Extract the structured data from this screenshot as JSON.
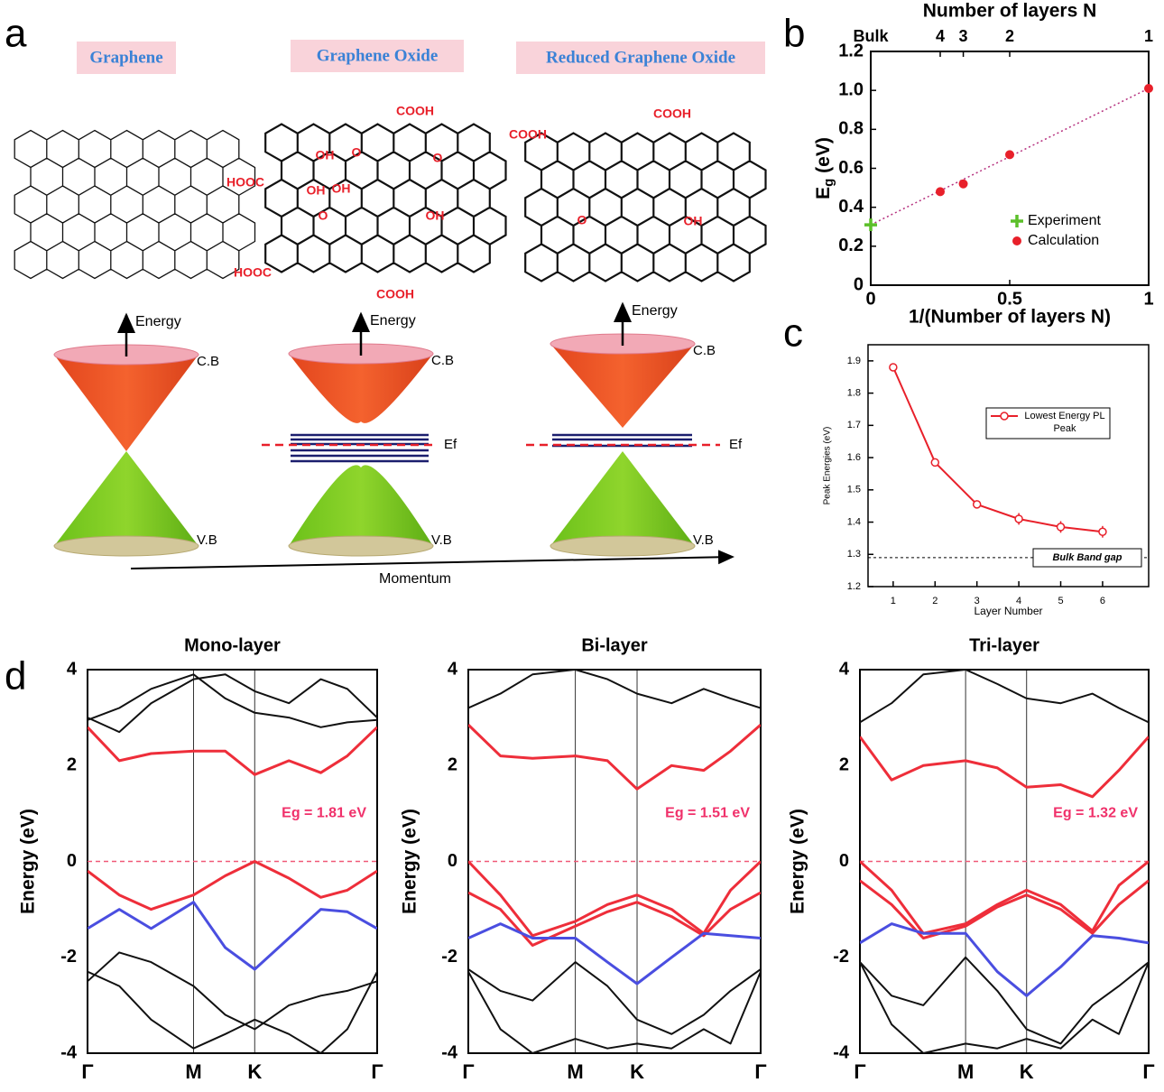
{
  "panel_labels": [
    "a",
    "b",
    "c",
    "d"
  ],
  "diagram": {
    "titles": [
      "Graphene",
      "Graphene Oxide",
      "Reduced Graphene Oxide"
    ],
    "groups": [
      "COOH",
      "COOH",
      "HOOC",
      "OH",
      "O",
      "O",
      "OH",
      "OH",
      "O",
      "OH",
      "HOOC",
      "COOH",
      "COOH",
      "O",
      "OH"
    ],
    "energy": "Energy",
    "cb": "C.B",
    "vb": "V.B",
    "ef": "Ef",
    "momentum": "Momentum"
  },
  "chart_data": [
    {
      "type": "scatter",
      "x2_label": "Number of layers N",
      "x_label": "1/(Number of layers N)",
      "y_label": [
        "E",
        "g",
        " (eV)"
      ],
      "xlim": [
        0,
        1
      ],
      "ylim": [
        0,
        1.2
      ],
      "xticks": [
        0,
        0.5,
        1
      ],
      "x2ticks": [
        {
          "value": 0,
          "label": "Bulk"
        },
        {
          "value": 0.25,
          "label": "4"
        },
        {
          "value": 0.333,
          "label": "3"
        },
        {
          "value": 0.5,
          "label": "2"
        },
        {
          "value": 1,
          "label": "1"
        }
      ],
      "yticks": [
        0,
        0.2,
        0.4,
        0.6,
        0.8,
        {
          "value": 1,
          "label": "1.0"
        },
        1.2
      ],
      "fit_color": "#b5307e",
      "series": [
        {
          "name": "Experiment",
          "color": "#5cbf2a",
          "marker": "plus",
          "x": [
            0
          ],
          "values": [
            0.31
          ]
        },
        {
          "name": "Calculation",
          "color": "#e8202a",
          "marker": "circle",
          "x": [
            0.25,
            0.333,
            0.5,
            1
          ],
          "values": [
            0.48,
            0.52,
            0.67,
            1.01
          ]
        }
      ]
    },
    {
      "type": "line",
      "x_label": "Layer Number",
      "y_label": "Peak Energies (eV)",
      "xlim": [
        0.4,
        7.1
      ],
      "ylim": [
        1.2,
        1.95
      ],
      "xticks": [
        1,
        2,
        3,
        4,
        5,
        6
      ],
      "yticks": [
        1.2,
        1.3,
        1.4,
        1.5,
        1.6,
        1.7,
        1.8,
        1.9
      ],
      "x": [
        1,
        2,
        3,
        4,
        5,
        6
      ],
      "series": [
        {
          "name": "Lowest Energy PL Peak",
          "color": "#e8202a",
          "values": [
            1.88,
            1.585,
            1.455,
            1.41,
            1.385,
            1.37
          ],
          "errors": [
            0.008,
            0.012,
            0.01,
            0.018,
            0.018,
            0.018
          ]
        }
      ],
      "reference": {
        "value": 1.29,
        "label": "Bulk Band gap"
      }
    },
    {
      "type": "line",
      "title": "Mono-layer",
      "y_label": "Energy (eV)",
      "annotation": "Eg = 1.81 eV",
      "xlim": [
        0,
        2.732
      ],
      "ylim": [
        -4,
        4
      ],
      "xticks": [
        {
          "value": 0,
          "label": "Γ"
        },
        {
          "value": 1,
          "label": "M"
        },
        {
          "value": 1.577,
          "label": "K"
        },
        {
          "value": 2.732,
          "label": "Γ"
        }
      ],
      "yticks": [
        -4,
        -2,
        0,
        2,
        4
      ],
      "fermi_level": 0,
      "x": [
        0,
        0.3,
        0.6,
        1,
        1.3,
        1.577,
        1.9,
        2.2,
        2.45,
        2.732
      ],
      "series": [
        {
          "color": "#ee2e3a",
          "values": [
            2.8,
            2.1,
            2.25,
            2.3,
            2.3,
            1.81,
            2.1,
            1.85,
            2.2,
            2.8
          ]
        },
        {
          "color": "#ee2e3a",
          "values": [
            -0.2,
            -0.7,
            -1.0,
            -0.7,
            -0.3,
            0,
            -0.35,
            -0.75,
            -0.6,
            -0.2
          ]
        },
        {
          "color": "#4a4ee0",
          "values": [
            -1.4,
            -1.0,
            -1.4,
            -0.85,
            -1.8,
            -2.25,
            -1.6,
            -1.0,
            -1.05,
            -1.4
          ]
        },
        {
          "color": "#111111",
          "values": [
            3.0,
            2.7,
            3.3,
            3.8,
            3.9,
            3.55,
            3.3,
            3.8,
            3.6,
            3.0
          ]
        },
        {
          "color": "#111111",
          "values": [
            2.95,
            3.2,
            3.6,
            3.9,
            3.4,
            3.1,
            3.0,
            2.8,
            2.9,
            2.95
          ]
        },
        {
          "color": "#111111",
          "values": [
            -2.5,
            -1.9,
            -2.1,
            -2.6,
            -3.2,
            -3.5,
            -3.0,
            -2.8,
            -2.7,
            -2.5
          ]
        },
        {
          "color": "#111111",
          "values": [
            -2.3,
            -2.6,
            -3.3,
            -3.9,
            -3.6,
            -3.3,
            -3.6,
            -4.0,
            -3.5,
            -2.3
          ]
        }
      ]
    },
    {
      "type": "line",
      "title": "Bi-layer",
      "y_label": "Energy (eV)",
      "annotation": "Eg = 1.51 eV",
      "xlim": [
        0,
        2.732
      ],
      "ylim": [
        -4,
        4
      ],
      "xticks": [
        {
          "value": 0,
          "label": "Γ"
        },
        {
          "value": 1,
          "label": "M"
        },
        {
          "value": 1.577,
          "label": "K"
        },
        {
          "value": 2.732,
          "label": "Γ"
        }
      ],
      "yticks": [
        -4,
        -2,
        0,
        2,
        4
      ],
      "fermi_level": 0,
      "x": [
        0,
        0.3,
        0.6,
        1,
        1.3,
        1.577,
        1.9,
        2.2,
        2.45,
        2.732
      ],
      "series": [
        {
          "color": "#ee2e3a",
          "values": [
            2.85,
            2.2,
            2.15,
            2.2,
            2.1,
            1.51,
            2.0,
            1.9,
            2.3,
            2.85
          ]
        },
        {
          "color": "#ee2e3a",
          "values": [
            0,
            -0.7,
            -1.55,
            -1.25,
            -0.9,
            -0.7,
            -1.0,
            -1.5,
            -0.6,
            0
          ]
        },
        {
          "color": "#ee2e3a",
          "values": [
            -0.65,
            -1.0,
            -1.75,
            -1.35,
            -1.05,
            -0.85,
            -1.15,
            -1.55,
            -1.0,
            -0.65
          ]
        },
        {
          "color": "#4a4ee0",
          "values": [
            -1.6,
            -1.3,
            -1.6,
            -1.6,
            -2.1,
            -2.55,
            -2.0,
            -1.5,
            -1.55,
            -1.6
          ]
        },
        {
          "color": "#111111",
          "values": [
            3.2,
            3.5,
            3.9,
            4.0,
            3.8,
            3.5,
            3.3,
            3.6,
            3.4,
            3.2
          ]
        },
        {
          "color": "#111111",
          "values": [
            -2.25,
            -2.7,
            -2.9,
            -2.1,
            -2.6,
            -3.3,
            -3.6,
            -3.2,
            -2.7,
            -2.25
          ]
        },
        {
          "color": "#111111",
          "values": [
            -2.3,
            -3.5,
            -4.0,
            -3.7,
            -3.9,
            -3.8,
            -3.9,
            -3.5,
            -3.8,
            -2.3
          ]
        }
      ]
    },
    {
      "type": "line",
      "title": "Tri-layer",
      "y_label": "Energy (eV)",
      "annotation": "Eg = 1.32 eV",
      "xlim": [
        0,
        2.732
      ],
      "ylim": [
        -4,
        4
      ],
      "xticks": [
        {
          "value": 0,
          "label": "Γ"
        },
        {
          "value": 1,
          "label": "M"
        },
        {
          "value": 1.577,
          "label": "K"
        },
        {
          "value": 2.732,
          "label": "Γ"
        }
      ],
      "yticks": [
        -4,
        -2,
        0,
        2,
        4
      ],
      "fermi_level": 0,
      "x": [
        0,
        0.3,
        0.6,
        1,
        1.3,
        1.577,
        1.9,
        2.2,
        2.45,
        2.732
      ],
      "series": [
        {
          "color": "#ee2e3a",
          "values": [
            2.6,
            1.7,
            2.0,
            2.1,
            1.95,
            1.55,
            1.6,
            1.35,
            1.9,
            2.6
          ]
        },
        {
          "color": "#ee2e3a",
          "values": [
            0,
            -0.6,
            -1.5,
            -1.3,
            -0.9,
            -0.6,
            -0.9,
            -1.45,
            -0.5,
            0
          ]
        },
        {
          "color": "#ee2e3a",
          "values": [
            -0.4,
            -0.9,
            -1.6,
            -1.35,
            -0.95,
            -0.7,
            -1.0,
            -1.5,
            -0.9,
            -0.4
          ]
        },
        {
          "color": "#4a4ee0",
          "values": [
            -1.7,
            -1.3,
            -1.5,
            -1.5,
            -2.3,
            -2.8,
            -2.2,
            -1.55,
            -1.6,
            -1.7
          ]
        },
        {
          "color": "#111111",
          "values": [
            2.9,
            3.3,
            3.9,
            4.0,
            3.7,
            3.4,
            3.3,
            3.5,
            3.2,
            2.9
          ]
        },
        {
          "color": "#111111",
          "values": [
            -2.1,
            -2.8,
            -3.0,
            -2.0,
            -2.7,
            -3.5,
            -3.8,
            -3.0,
            -2.6,
            -2.1
          ]
        },
        {
          "color": "#111111",
          "values": [
            -2.1,
            -3.4,
            -4.0,
            -3.8,
            -3.9,
            -3.7,
            -3.9,
            -3.3,
            -3.6,
            -2.1
          ]
        }
      ]
    }
  ]
}
